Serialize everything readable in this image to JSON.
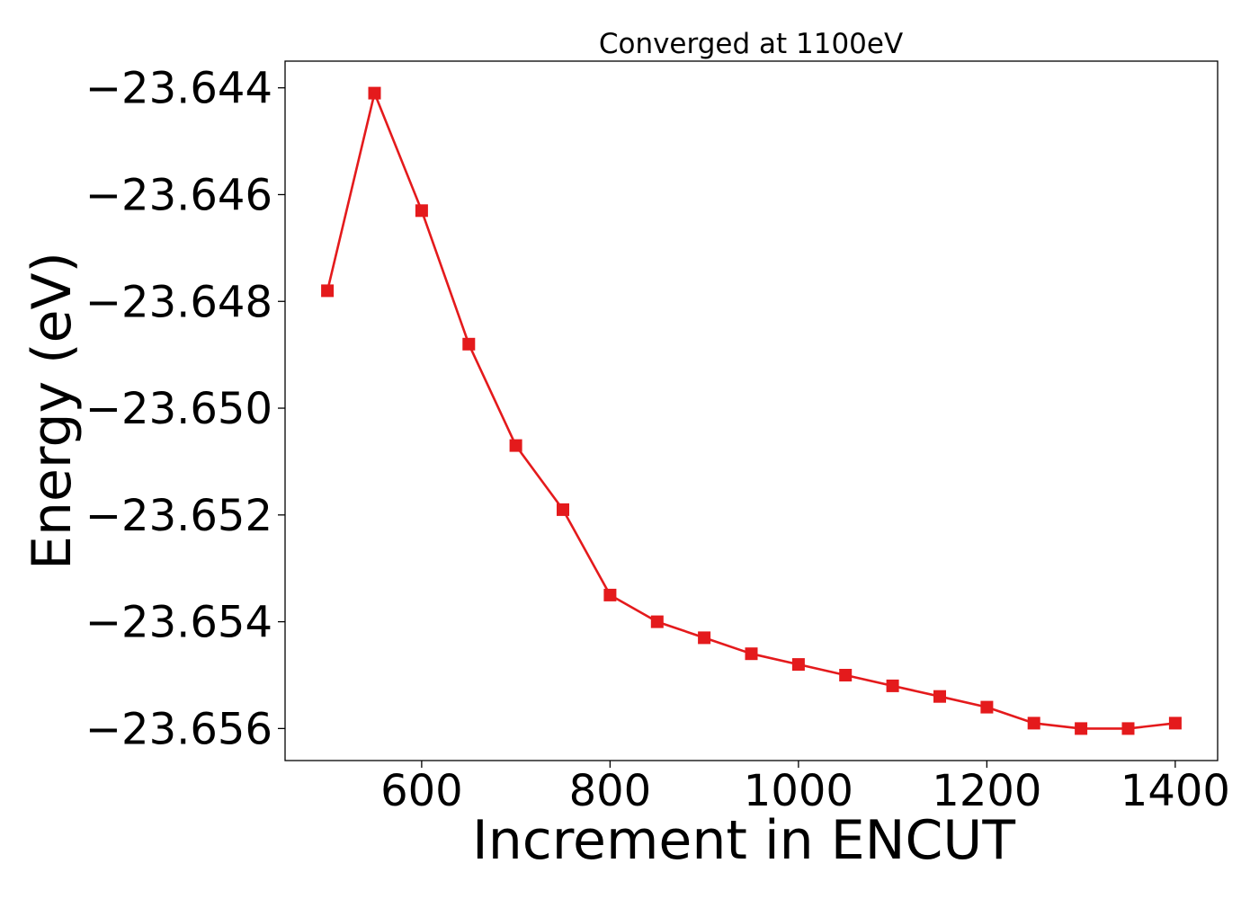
{
  "colors": {
    "series": "#e41a1c",
    "axes": "#000000",
    "background": "#ffffff"
  },
  "chart_data": {
    "type": "line",
    "title": "Converged at 1100eV",
    "xlabel": "Increment in ENCUT",
    "ylabel": "Energy (eV)",
    "xlim": [
      455,
      1445
    ],
    "ylim": [
      -23.6566,
      -23.6435
    ],
    "grid": false,
    "legend": "none",
    "x_ticks": [
      {
        "value": 600,
        "label": "600"
      },
      {
        "value": 800,
        "label": "800"
      },
      {
        "value": 1000,
        "label": "1000"
      },
      {
        "value": 1200,
        "label": "1200"
      },
      {
        "value": 1400,
        "label": "1400"
      }
    ],
    "y_ticks": [
      {
        "value": -23.644,
        "label": "−23.644"
      },
      {
        "value": -23.646,
        "label": "−23.646"
      },
      {
        "value": -23.648,
        "label": "−23.648"
      },
      {
        "value": -23.65,
        "label": "−23.650"
      },
      {
        "value": -23.652,
        "label": "−23.652"
      },
      {
        "value": -23.654,
        "label": "−23.654"
      },
      {
        "value": -23.656,
        "label": "−23.656"
      }
    ],
    "series": [
      {
        "marker": "square",
        "color": "#e41a1c",
        "x": [
          500,
          550,
          600,
          650,
          700,
          750,
          800,
          850,
          900,
          950,
          1000,
          1050,
          1100,
          1150,
          1200,
          1250,
          1300,
          1350,
          1400
        ],
        "y": [
          -23.6478,
          -23.6441,
          -23.6463,
          -23.6488,
          -23.6507,
          -23.6519,
          -23.6535,
          -23.654,
          -23.6543,
          -23.6546,
          -23.6548,
          -23.655,
          -23.6552,
          -23.6554,
          -23.6556,
          -23.6559,
          -23.656,
          -23.656,
          -23.6559
        ]
      }
    ]
  }
}
